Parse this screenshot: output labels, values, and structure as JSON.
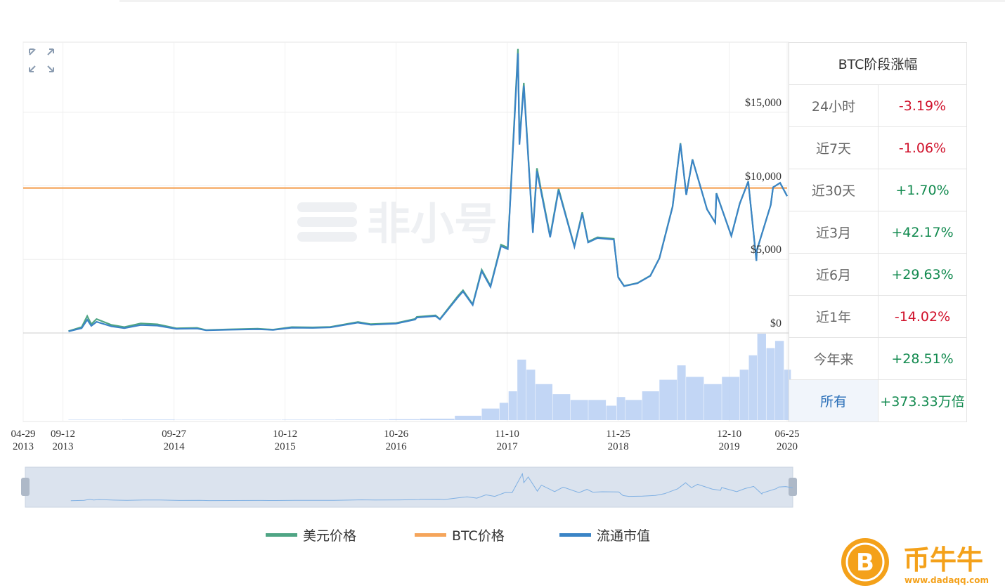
{
  "chart_data": {
    "type": "line",
    "xlim": [
      "2013-04-29",
      "2020-06-25"
    ],
    "xticks": [
      {
        "value": "2013-04-29",
        "label": "04-29\n2013"
      },
      {
        "value": "2013-09-12",
        "label": "09-12\n2013"
      },
      {
        "value": "2014-09-27",
        "label": "09-27\n2014"
      },
      {
        "value": "2015-10-12",
        "label": "10-12\n2015"
      },
      {
        "value": "2016-10-26",
        "label": "10-26\n2016"
      },
      {
        "value": "2017-11-10",
        "label": "11-10\n2017"
      },
      {
        "value": "2018-11-25",
        "label": "11-25\n2018"
      },
      {
        "value": "2019-12-10",
        "label": "12-10\n2019"
      },
      {
        "value": "2020-06-25",
        "label": "06-25\n2020"
      }
    ],
    "ylim": [
      0,
      20000
    ],
    "yticks": [
      {
        "value": 0,
        "label": "$0"
      },
      {
        "value": 5000,
        "label": "$5,000"
      },
      {
        "value": 10000,
        "label": "$10,000"
      },
      {
        "value": 15000,
        "label": "$15,000"
      }
    ],
    "y2lim": [
      0,
      2.03
    ],
    "grid": true,
    "x": [
      "2013-10-01",
      "2013-11-15",
      "2013-12-04",
      "2013-12-18",
      "2014-01-05",
      "2014-02-25",
      "2014-04-10",
      "2014-06-05",
      "2014-08-01",
      "2014-10-05",
      "2014-12-15",
      "2015-01-15",
      "2015-04-01",
      "2015-07-10",
      "2015-09-01",
      "2015-11-04",
      "2016-01-15",
      "2016-03-15",
      "2016-06-17",
      "2016-08-01",
      "2016-10-26",
      "2016-12-30",
      "2017-01-05",
      "2017-03-10",
      "2017-03-25",
      "2017-05-25",
      "2017-06-12",
      "2017-07-15",
      "2017-08-15",
      "2017-09-14",
      "2017-10-20",
      "2017-11-12",
      "2017-12-17",
      "2017-12-22",
      "2018-01-06",
      "2018-02-06",
      "2018-02-20",
      "2018-04-06",
      "2018-05-05",
      "2018-06-28",
      "2018-07-25",
      "2018-08-14",
      "2018-09-15",
      "2018-11-10",
      "2018-11-25",
      "2018-12-15",
      "2019-01-30",
      "2019-03-15",
      "2019-04-15",
      "2019-05-30",
      "2019-06-26",
      "2019-07-16",
      "2019-08-06",
      "2019-09-25",
      "2019-10-23",
      "2019-10-27",
      "2019-12-17",
      "2020-01-15",
      "2020-02-13",
      "2020-03-12",
      "2020-03-13",
      "2020-04-30",
      "2020-05-08",
      "2020-06-01",
      "2020-06-25"
    ],
    "series": [
      {
        "name": "美元价格",
        "color": "#4fa584",
        "values": [
          130,
          400,
          1150,
          600,
          950,
          550,
          400,
          650,
          590,
          320,
          350,
          200,
          250,
          290,
          230,
          400,
          380,
          415,
          750,
          600,
          680,
          960,
          1100,
          1200,
          950,
          2500,
          2900,
          1950,
          4300,
          3200,
          6000,
          5800,
          19300,
          13000,
          17000,
          6900,
          11200,
          6600,
          9800,
          5900,
          8200,
          6200,
          6500,
          6400,
          3800,
          3200,
          3400,
          3900,
          5100,
          8600,
          12900,
          9400,
          11800,
          8400,
          7500,
          9500,
          6600,
          8800,
          10300,
          4900,
          5600,
          8700,
          9900,
          10200,
          9300
        ]
      },
      {
        "name": "BTC价格",
        "color": "#f5a55b",
        "axis": "y2",
        "x": [
          "2013-04-29",
          "2020-06-25"
        ],
        "values": [
          1,
          1
        ]
      },
      {
        "name": "流通市值",
        "color": "#3b84c6",
        "values": [
          110,
          330,
          900,
          480,
          760,
          450,
          330,
          540,
          500,
          280,
          300,
          180,
          220,
          260,
          210,
          360,
          345,
          380,
          700,
          560,
          640,
          910,
          1050,
          1150,
          920,
          2420,
          2820,
          1900,
          4200,
          3130,
          5900,
          5700,
          19000,
          12800,
          16800,
          6800,
          11000,
          6500,
          9700,
          5850,
          8100,
          6150,
          6450,
          6350,
          3780,
          3180,
          3380,
          3880,
          5080,
          8570,
          12850,
          9380,
          11780,
          8390,
          7490,
          9480,
          6590,
          8790,
          10290,
          4900,
          5600,
          8700,
          9900,
          10200,
          9300
        ]
      }
    ],
    "volume": {
      "color": "#b7cff3",
      "ylim": [
        0,
        60
      ],
      "x": [
        "2013-10-01",
        "2014-04-01",
        "2014-10-01",
        "2015-04-01",
        "2015-10-01",
        "2016-04-01",
        "2016-10-01",
        "2017-01-15",
        "2017-05-15",
        "2017-08-15",
        "2017-10-15",
        "2017-11-15",
        "2017-12-15",
        "2018-01-15",
        "2018-02-15",
        "2018-04-15",
        "2018-06-15",
        "2018-08-15",
        "2018-10-15",
        "2018-11-20",
        "2018-12-20",
        "2019-02-15",
        "2019-04-15",
        "2019-06-15",
        "2019-07-15",
        "2019-09-15",
        "2019-11-15",
        "2020-01-15",
        "2020-02-15",
        "2020-03-15",
        "2020-04-15",
        "2020-05-15",
        "2020-06-15"
      ],
      "values": [
        0.3,
        0.4,
        0.2,
        0.2,
        0.3,
        0.4,
        0.6,
        1,
        3,
        8,
        12,
        20,
        42,
        35,
        25,
        18,
        14,
        14,
        10,
        16,
        14,
        20,
        28,
        38,
        30,
        25,
        30,
        35,
        45,
        60,
        50,
        55,
        35
      ]
    }
  },
  "table": {
    "title": "BTC阶段涨幅",
    "rows": [
      [
        "24小时",
        "-3.19%"
      ],
      [
        "近7天",
        "-1.06%"
      ],
      [
        "近30天",
        "+1.70%"
      ],
      [
        "近3月",
        "+42.17%"
      ],
      [
        "近6月",
        "+29.63%"
      ],
      [
        "近1年",
        "-14.02%"
      ],
      [
        "今年来",
        "+28.51%"
      ],
      [
        "所有",
        "+373.33万倍"
      ]
    ]
  },
  "watermark": "非小号",
  "brand": {
    "name": "币牛牛",
    "url": "www.dadaqq.com"
  }
}
